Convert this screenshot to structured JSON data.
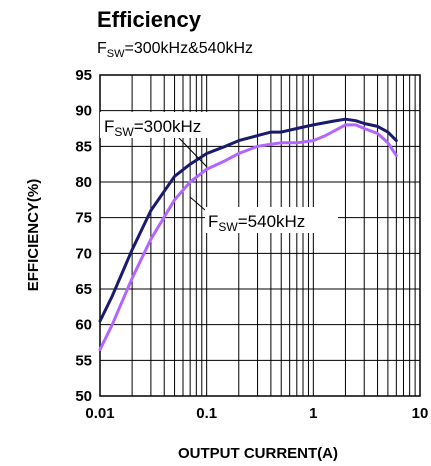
{
  "chart_data": {
    "type": "line",
    "title": "Efficiency",
    "subtitle": {
      "main": "F",
      "sub": "SW",
      "rest": "=300kHz&540kHz"
    },
    "xlabel": "OUTPUT CURRENT(A)",
    "ylabel": "EFFICIENCY(%)",
    "xscale": "log",
    "xlim": [
      0.01,
      10
    ],
    "ylim": [
      50,
      95
    ],
    "xticks": [
      0.01,
      0.1,
      1,
      10
    ],
    "xtick_labels": [
      "0.01",
      "0.1",
      "1",
      "10"
    ],
    "yticks": [
      50,
      55,
      60,
      65,
      70,
      75,
      80,
      85,
      90,
      95
    ],
    "ytick_labels": [
      "50",
      "55",
      "60",
      "65",
      "70",
      "75",
      "80",
      "85",
      "90",
      "95"
    ],
    "grid": true,
    "series": [
      {
        "name": {
          "main": "F",
          "sub": "SW",
          "rest": "=300kHz"
        },
        "color": "#1a1a6e",
        "x": [
          0.01,
          0.013,
          0.02,
          0.03,
          0.05,
          0.07,
          0.1,
          0.15,
          0.2,
          0.3,
          0.4,
          0.5,
          0.7,
          1,
          1.5,
          2,
          2.5,
          3,
          4,
          5,
          6
        ],
        "y": [
          60.5,
          64,
          70.5,
          76,
          80.8,
          82.5,
          84,
          85,
          85.8,
          86.5,
          87,
          87,
          87.5,
          88,
          88.5,
          88.8,
          88.6,
          88.2,
          87.8,
          87,
          85.8
        ]
      },
      {
        "name": {
          "main": "F",
          "sub": "SW",
          "rest": "=540kHz"
        },
        "color": "#b266ff",
        "x": [
          0.01,
          0.013,
          0.02,
          0.03,
          0.05,
          0.07,
          0.1,
          0.15,
          0.2,
          0.3,
          0.4,
          0.5,
          0.7,
          1,
          1.3,
          2,
          2.5,
          3,
          4,
          5,
          6
        ],
        "y": [
          56.5,
          60,
          66.5,
          72,
          77.5,
          80,
          81.8,
          83,
          84,
          85,
          85.3,
          85.5,
          85.5,
          85.8,
          86.5,
          88,
          88,
          87.5,
          86.8,
          85.5,
          83.7
        ]
      }
    ]
  }
}
